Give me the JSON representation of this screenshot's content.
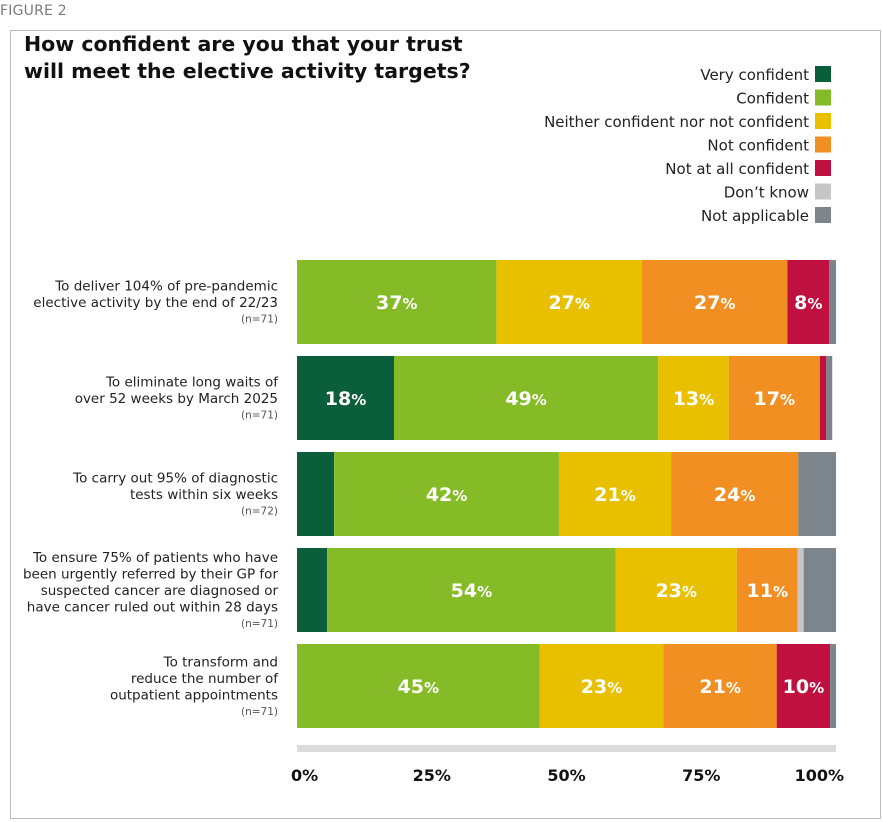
{
  "figure_label": "FIGURE 2",
  "colors": {
    "very_confident": "#0a5e3a",
    "confident": "#86bb28",
    "neither": "#e8c000",
    "not_confident": "#f18f22",
    "not_at_all": "#c0103f",
    "dont_know": "#c6c6c6",
    "not_applicable": "#7d858c"
  },
  "chart_data": {
    "type": "bar",
    "orientation": "horizontal",
    "stacked": true,
    "title_lines": [
      "How confident are you that your trust",
      "will meet the elective activity targets?"
    ],
    "legend": [
      "Very confident",
      "Confident",
      "Neither confident nor not confident",
      "Not confident",
      "Not at all confident",
      "Don’t know",
      "Not applicable"
    ],
    "xlim": [
      0,
      100
    ],
    "xticks": [
      "0%",
      "25%",
      "50%",
      "75%",
      "100%"
    ],
    "categories": [
      {
        "label_lines": [
          "To deliver 104% of pre-pandemic",
          "elective activity by the end of 22/23"
        ],
        "n": "(n=71)"
      },
      {
        "label_lines": [
          "To eliminate long waits of",
          "over 52 weeks by March 2025"
        ],
        "n": "(n=71)"
      },
      {
        "label_lines": [
          "To carry out 95% of diagnostic",
          "tests within six weeks"
        ],
        "n": "(n=72)"
      },
      {
        "label_lines": [
          "To ensure 75% of patients who have",
          "been urgently referred by their GP for",
          "suspected cancer are diagnosed or",
          "have cancer ruled out within 28 days"
        ],
        "n": "(n=71)"
      },
      {
        "label_lines": [
          "To transform and",
          "reduce the number of",
          "outpatient appointments"
        ],
        "n": "(n=71)"
      }
    ],
    "series": [
      {
        "name": "Very confident",
        "values": [
          0,
          18,
          6.9,
          5.6,
          0
        ],
        "labels": [
          "",
          "18",
          "",
          "",
          ""
        ]
      },
      {
        "name": "Confident",
        "values": [
          37,
          49,
          41.7,
          53.5,
          45
        ],
        "labels": [
          "37",
          "49",
          "42",
          "54",
          "45"
        ]
      },
      {
        "name": "Neither confident nor not confident",
        "values": [
          27,
          13.1,
          20.8,
          22.5,
          23
        ],
        "labels": [
          "27",
          "13",
          "21",
          "23",
          "23"
        ]
      },
      {
        "name": "Not confident",
        "values": [
          27,
          16.9,
          23.6,
          11.3,
          21
        ],
        "labels": [
          "27",
          "17",
          "24",
          "11",
          "21"
        ]
      },
      {
        "name": "Not at all confident",
        "values": [
          7.7,
          1.2,
          0,
          0,
          9.9
        ],
        "labels": [
          "8",
          "",
          "",
          "",
          "10"
        ]
      },
      {
        "name": "Don’t know",
        "values": [
          0,
          0,
          0,
          1.1,
          0
        ],
        "labels": [
          "",
          "",
          "",
          "",
          ""
        ]
      },
      {
        "name": "Not applicable",
        "values": [
          1.3,
          1.1,
          7,
          6,
          1.1
        ],
        "labels": [
          "",
          "",
          "",
          "",
          ""
        ]
      }
    ]
  }
}
